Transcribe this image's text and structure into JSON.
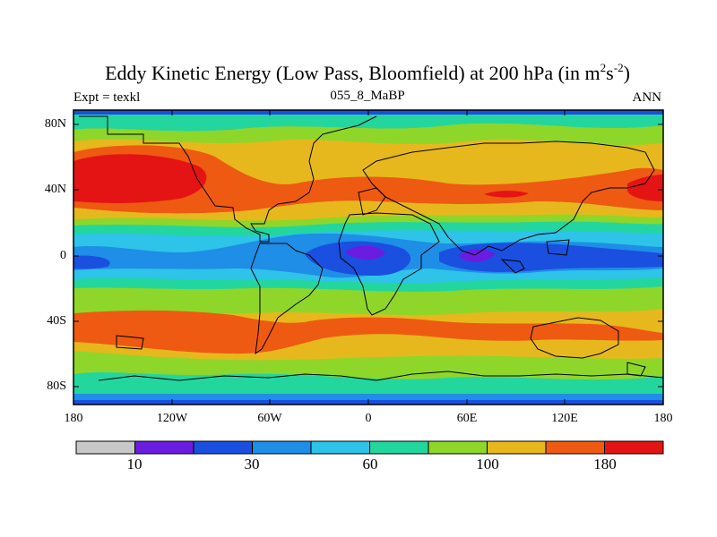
{
  "title": {
    "main": "Eddy Kinetic Energy (Low Pass, Bloomfield) at 200 hPa (in m",
    "sup1": "2",
    "mid": "s",
    "sup2": "-2",
    "close": ")"
  },
  "subtitle": {
    "left": "Expt = texkl",
    "center": "055_8_MaBP",
    "right": "ANN"
  },
  "axes": {
    "lat_labels": [
      "80N",
      "40N",
      "0",
      "40S",
      "80S"
    ],
    "lon_labels": [
      "180",
      "120W",
      "60W",
      "0",
      "60E",
      "120E",
      "180"
    ]
  },
  "colorbar": {
    "labels": [
      "10",
      "30",
      "60",
      "100",
      "180"
    ],
    "colors": [
      "#c8c8c8",
      "#6a1de0",
      "#1a4fe0",
      "#1e8ee6",
      "#2ec3e8",
      "#23d69e",
      "#8fd62a",
      "#e6b81d",
      "#ee5a12",
      "#e41414"
    ]
  }
}
